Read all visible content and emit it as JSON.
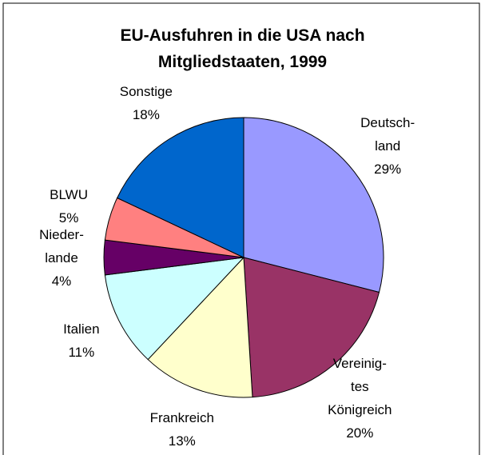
{
  "chart_data": {
    "type": "pie",
    "title": "EU-Ausfuhren in die USA nach\nMitgliedstaaten, 1999",
    "categories": [
      "Deutsch-\nland",
      "Vereinig-\ntes\nKönigreich",
      "Frankreich",
      "Italien",
      "Nieder-\nlande",
      "BLWU",
      "Sonstige"
    ],
    "values": [
      29,
      20,
      13,
      11,
      4,
      5,
      18
    ],
    "value_labels": [
      "29%",
      "20%",
      "13%",
      "11%",
      "4%",
      "5%",
      "18%"
    ],
    "colors": [
      "#9999ff",
      "#993366",
      "#ffffcc",
      "#ccffff",
      "#660066",
      "#ff8080",
      "#0066cc"
    ]
  }
}
